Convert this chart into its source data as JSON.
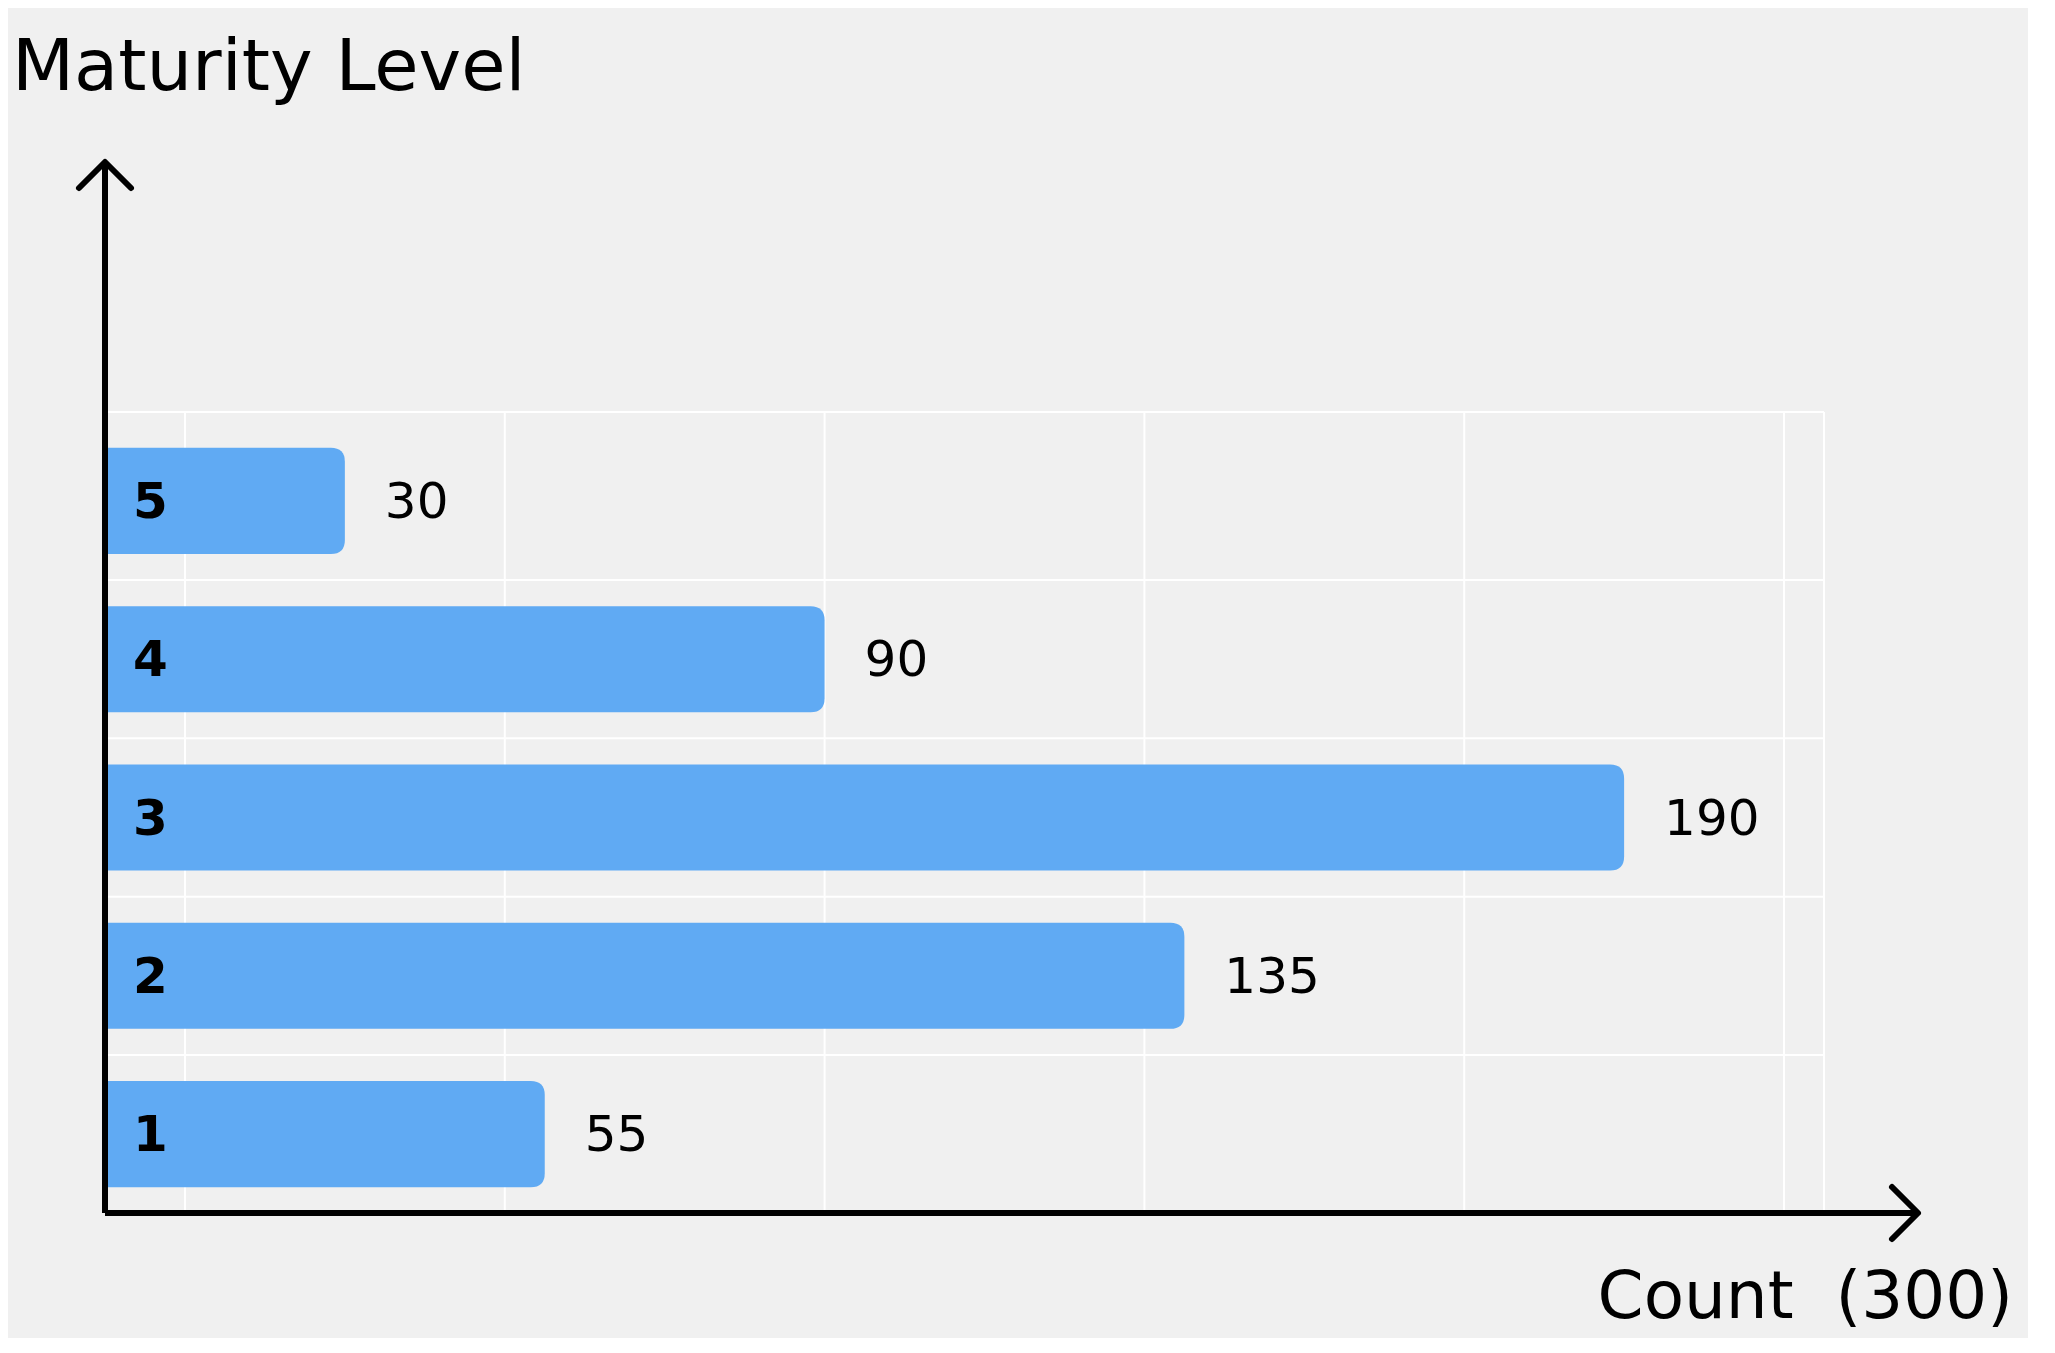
{
  "chart_data": {
    "type": "bar",
    "orientation": "horizontal",
    "ylabel": "Maturity Level",
    "xlabel": "Count  (300)",
    "categories": [
      "5",
      "4",
      "3",
      "2",
      "1"
    ],
    "values": [
      30,
      90,
      190,
      135,
      55
    ],
    "color": "#60aaf3",
    "xlim": [
      0,
      215
    ],
    "xticks": [
      {
        "value": 10,
        "label": null
      },
      {
        "value": 50,
        "label": null
      },
      {
        "value": 90,
        "label": null
      },
      {
        "value": 130,
        "label": null
      },
      {
        "value": 170,
        "label": null
      },
      {
        "value": 210,
        "label": null
      }
    ],
    "grid": true,
    "data_labels": true,
    "tick_labels": "y"
  }
}
